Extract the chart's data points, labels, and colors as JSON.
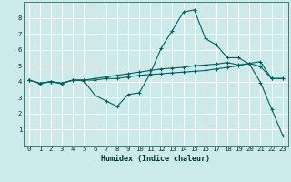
{
  "xlabel": "Humidex (Indice chaleur)",
  "bg_color": "#cceaea",
  "grid_color": "#ffffff",
  "line_color": "#006060",
  "xlim": [
    -0.5,
    23.5
  ],
  "ylim": [
    0,
    9
  ],
  "xticks": [
    0,
    1,
    2,
    3,
    4,
    5,
    6,
    7,
    8,
    9,
    10,
    11,
    12,
    13,
    14,
    15,
    16,
    17,
    18,
    19,
    20,
    21,
    22,
    23
  ],
  "yticks": [
    1,
    2,
    3,
    4,
    5,
    6,
    7,
    8
  ],
  "line1_x": [
    0,
    1,
    2,
    3,
    4,
    5,
    6,
    7,
    8,
    9,
    10,
    11,
    12,
    13,
    14,
    15,
    16,
    17,
    18,
    19,
    20,
    21,
    22,
    23
  ],
  "line1_y": [
    4.1,
    3.9,
    4.0,
    3.9,
    4.1,
    4.1,
    4.1,
    4.2,
    4.2,
    4.3,
    4.4,
    4.45,
    4.5,
    4.55,
    4.6,
    4.65,
    4.7,
    4.8,
    4.9,
    5.0,
    5.15,
    5.25,
    4.2,
    4.2
  ],
  "line2_x": [
    0,
    1,
    2,
    3,
    4,
    5,
    6,
    7,
    8,
    9,
    10,
    11,
    12,
    13,
    14,
    15,
    16,
    17,
    18,
    19,
    20,
    21,
    22,
    23
  ],
  "line2_y": [
    4.1,
    3.9,
    4.0,
    3.9,
    4.1,
    4.05,
    3.15,
    2.8,
    2.45,
    3.2,
    3.3,
    4.5,
    6.1,
    7.2,
    8.35,
    8.5,
    6.7,
    6.3,
    5.5,
    5.5,
    5.1,
    3.95,
    2.3,
    0.65
  ],
  "line3_x": [
    0,
    1,
    2,
    3,
    4,
    5,
    6,
    7,
    8,
    9,
    10,
    11,
    12,
    13,
    14,
    15,
    16,
    17,
    18,
    19,
    20,
    21,
    22,
    23
  ],
  "line3_y": [
    4.1,
    3.9,
    4.0,
    3.9,
    4.1,
    4.1,
    4.2,
    4.3,
    4.4,
    4.5,
    4.6,
    4.7,
    4.8,
    4.85,
    4.9,
    5.0,
    5.05,
    5.1,
    5.2,
    5.05,
    5.15,
    4.95,
    4.2,
    4.2
  ],
  "marker": "+",
  "markersize": 3.5,
  "linewidth": 0.8,
  "tick_fontsize": 5.2,
  "xlabel_fontsize": 6.0
}
